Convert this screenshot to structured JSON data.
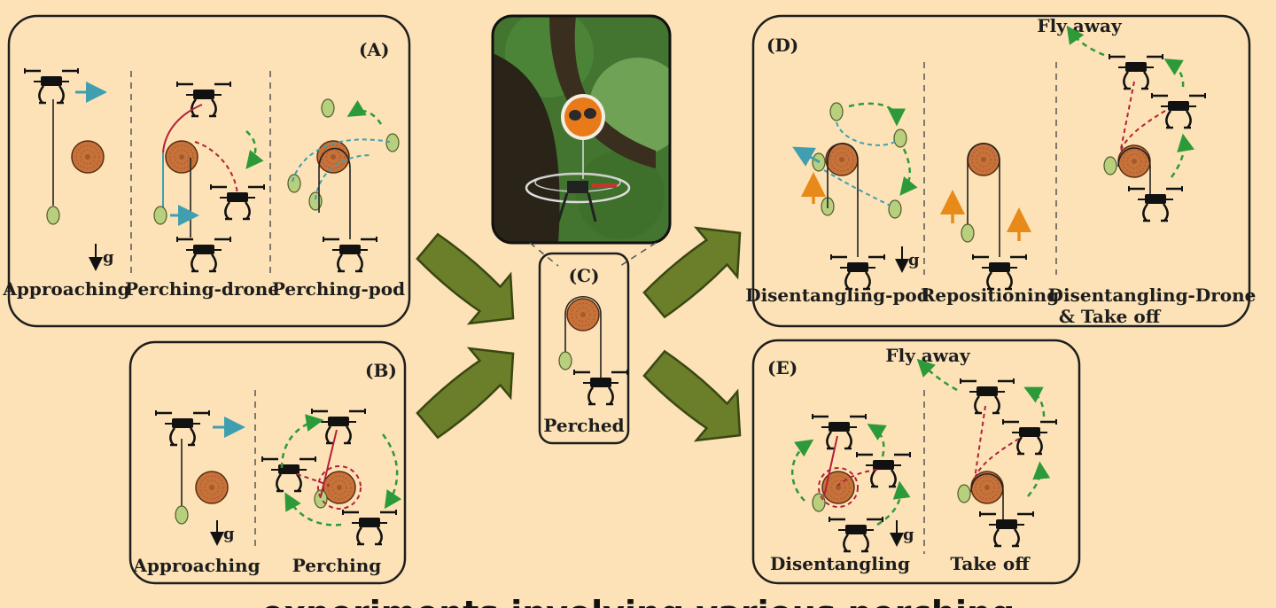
{
  "panels": {
    "A": {
      "tag": "(A)",
      "steps": [
        "Approaching",
        "Perching-drone",
        "Perching-pod"
      ]
    },
    "B": {
      "tag": "(B)",
      "steps": [
        "Approaching",
        "Perching"
      ]
    },
    "C": {
      "tag": "(C)",
      "steps": [
        "Perched"
      ]
    },
    "D": {
      "tag": "(D)",
      "steps": [
        "Disentangling-pod",
        "Repositioning",
        "Disentangling-Drone",
        "& Take off"
      ],
      "note": "Fly away"
    },
    "E": {
      "tag": "(E)",
      "steps": [
        "Disentangling",
        "Take off"
      ],
      "note": "Fly away"
    }
  },
  "gravity_label": "g",
  "footer_partial": "experiments involving various perching",
  "colors": {
    "background": "#fce2b6",
    "branch": "#c8723b",
    "pod": "#b8cf7e",
    "arrow": "#6b7f2a",
    "motion_teal": "#3f9fb0",
    "motion_green": "#2d9a3a",
    "tether_red": "#b3213a",
    "orange_arrow": "#e88a1a"
  }
}
